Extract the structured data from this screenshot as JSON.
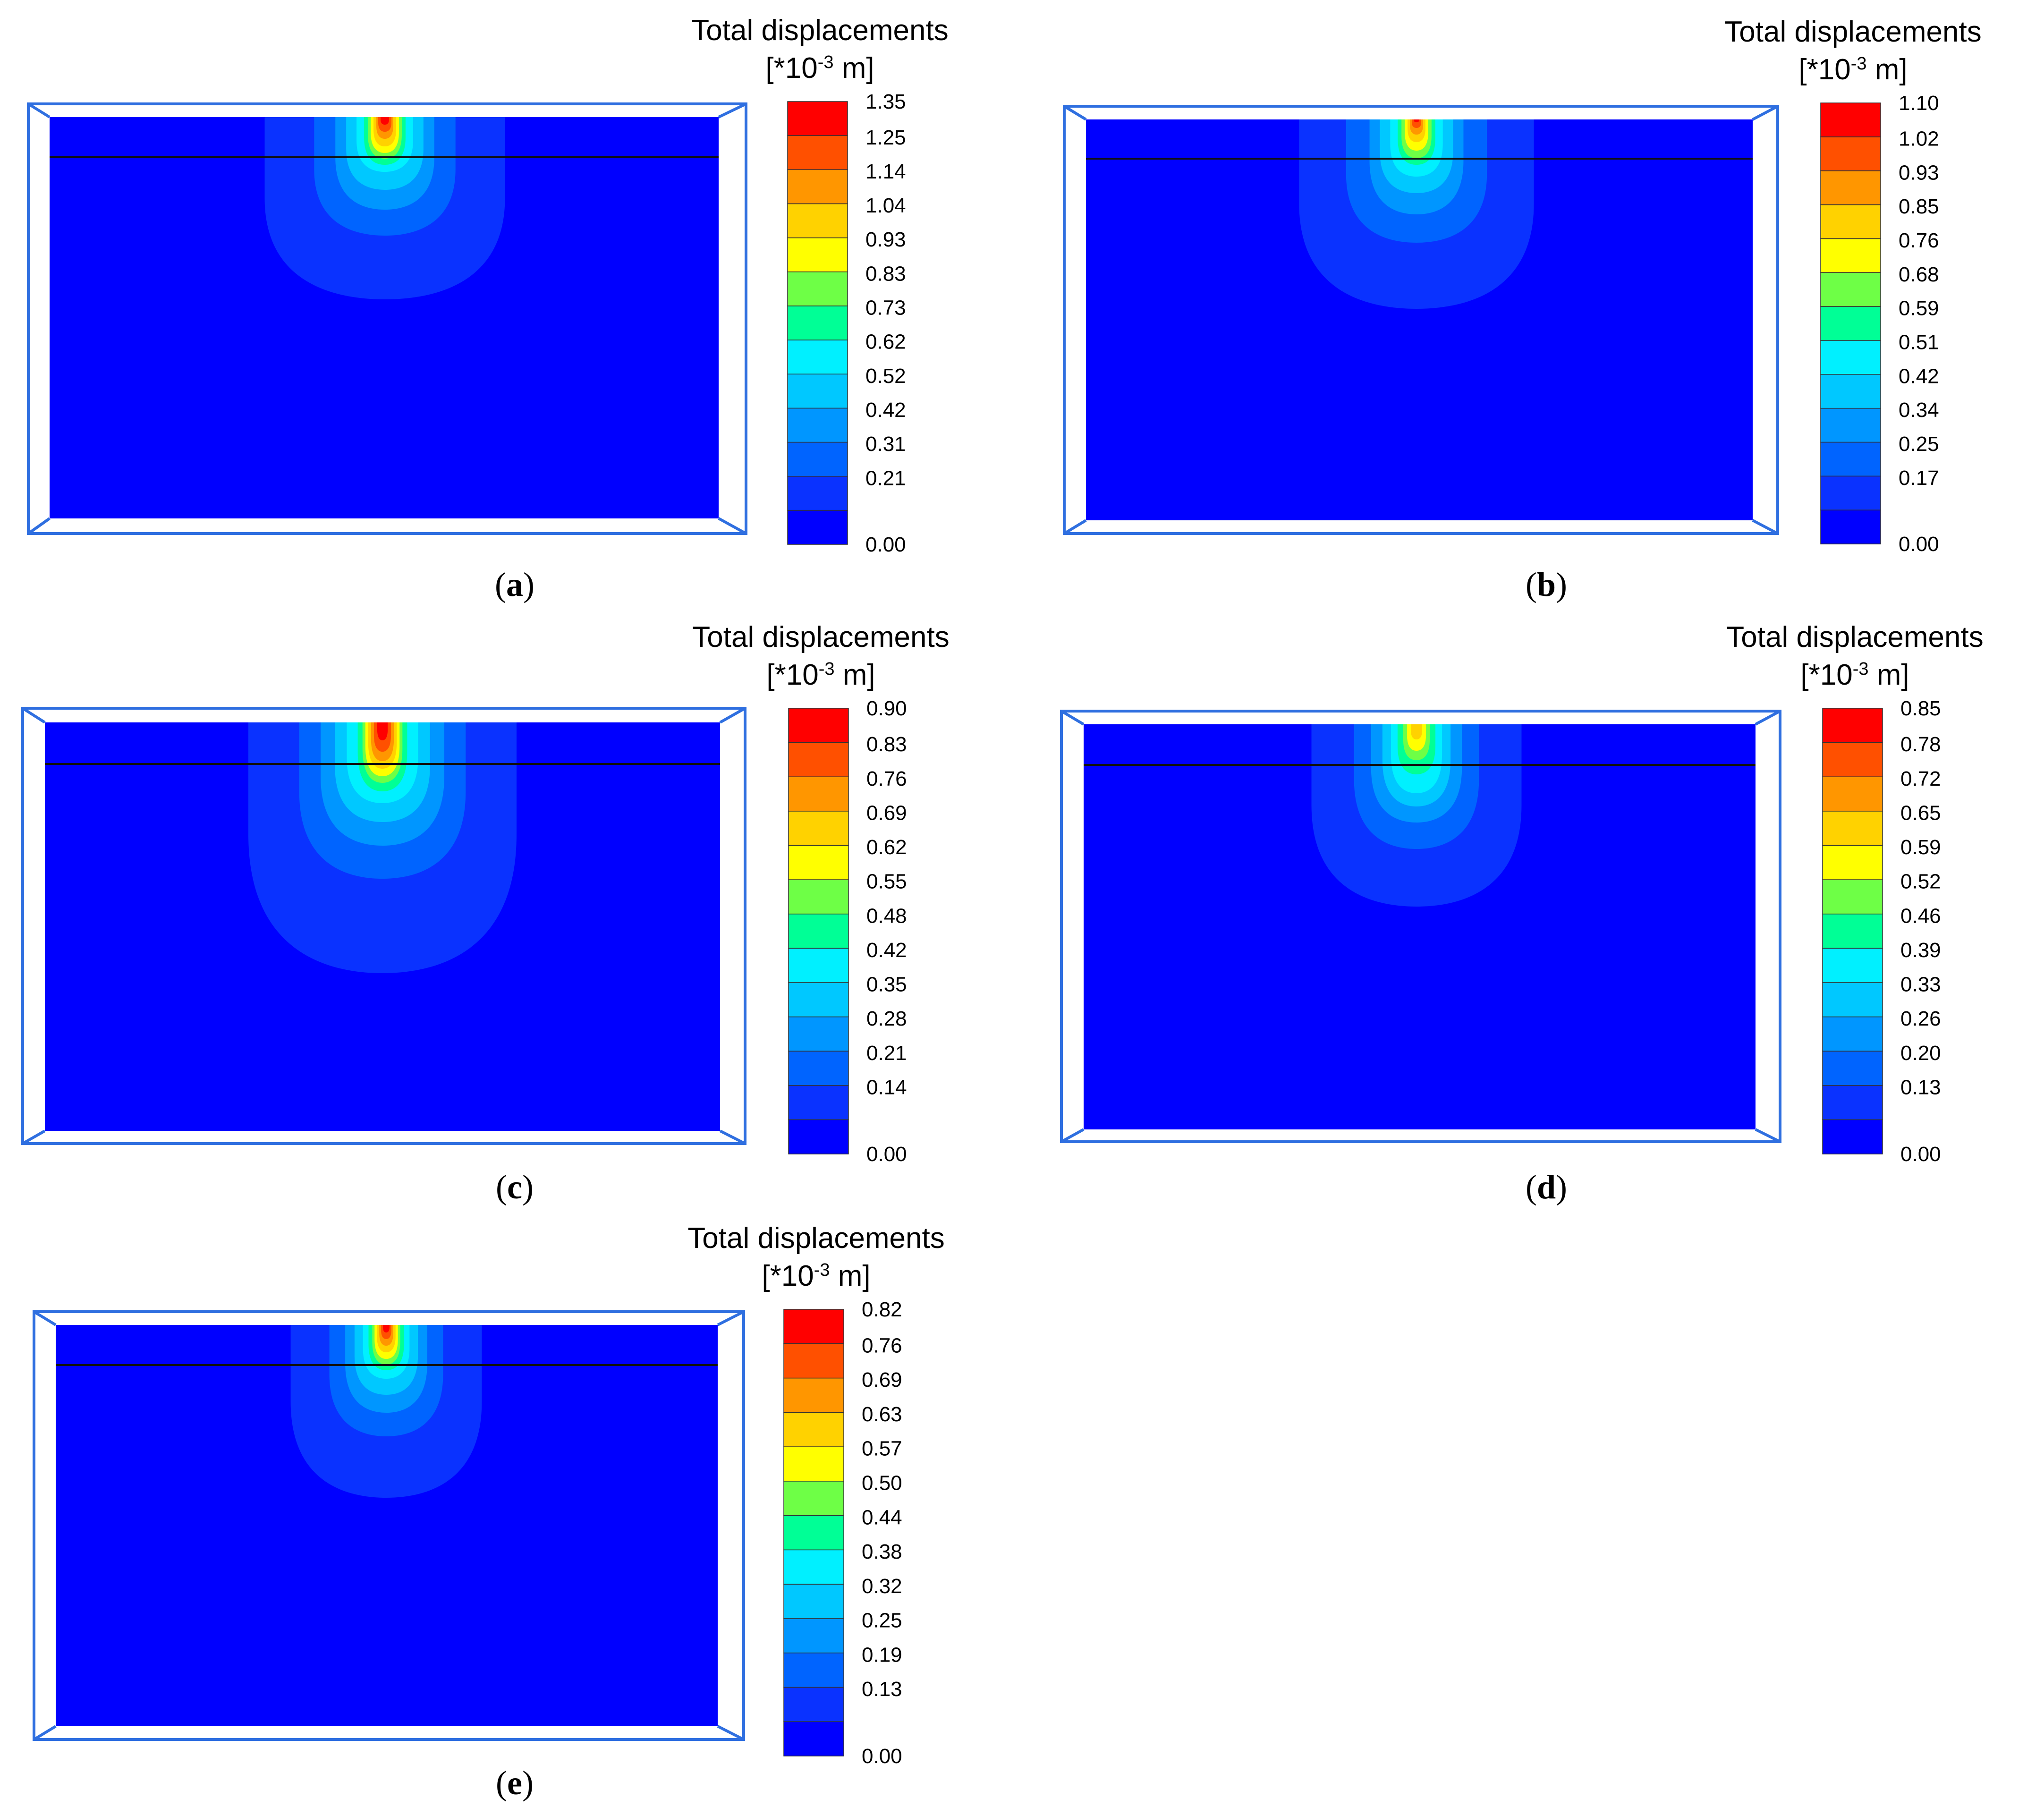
{
  "colorbar": {
    "title": "Total displacements",
    "unit_prefix": "[*10",
    "unit_exp": "-3",
    "unit_suffix": " m]",
    "colors": [
      "#0000ff",
      "#0a32ff",
      "#0064ff",
      "#0096ff",
      "#00c8ff",
      "#00f0ff",
      "#00ff96",
      "#6eff46",
      "#ffff00",
      "#ffd200",
      "#ff9600",
      "#ff5000",
      "#ff0000"
    ]
  },
  "panels": [
    {
      "id": "a",
      "caption_label": "a",
      "ticks": [
        "1.35",
        "1.25",
        "1.14",
        "1.04",
        "0.93",
        "0.83",
        "0.73",
        "0.62",
        "0.52",
        "0.42",
        "0.31",
        "0.21",
        "0.00"
      ]
    },
    {
      "id": "b",
      "caption_label": "b",
      "ticks": [
        "1.10",
        "1.02",
        "0.93",
        "0.85",
        "0.76",
        "0.68",
        "0.59",
        "0.51",
        "0.42",
        "0.34",
        "0.25",
        "0.17",
        "0.00"
      ]
    },
    {
      "id": "c",
      "caption_label": "c",
      "ticks": [
        "0.90",
        "0.83",
        "0.76",
        "0.69",
        "0.62",
        "0.55",
        "0.48",
        "0.42",
        "0.35",
        "0.28",
        "0.21",
        "0.14",
        "0.00"
      ]
    },
    {
      "id": "d",
      "caption_label": "d",
      "ticks": [
        "0.85",
        "0.78",
        "0.72",
        "0.65",
        "0.59",
        "0.52",
        "0.46",
        "0.39",
        "0.33",
        "0.26",
        "0.20",
        "0.13",
        "0.00"
      ]
    },
    {
      "id": "e",
      "caption_label": "e",
      "ticks": [
        "0.82",
        "0.76",
        "0.69",
        "0.63",
        "0.57",
        "0.50",
        "0.44",
        "0.38",
        "0.32",
        "0.25",
        "0.19",
        "0.13",
        "0.00"
      ]
    }
  ]
}
